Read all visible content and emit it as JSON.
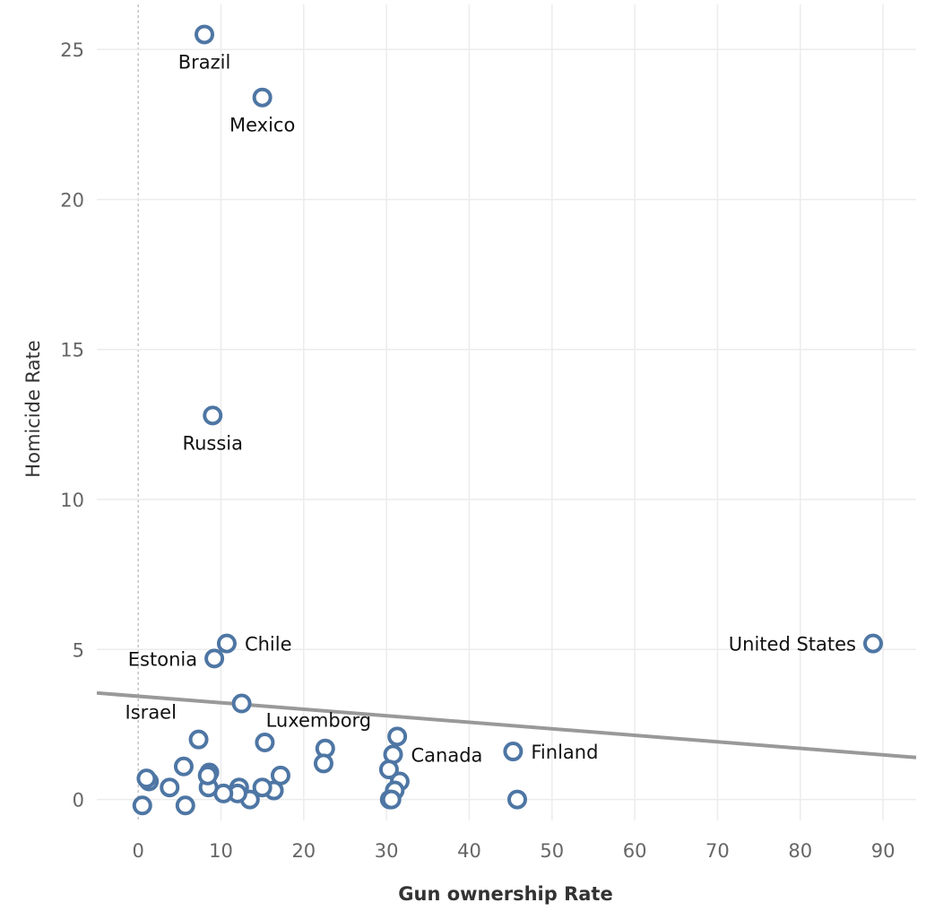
{
  "chart_data": {
    "type": "scatter",
    "xlabel": "Gun ownership Rate",
    "ylabel": "Homicide Rate",
    "xlim": [
      -5,
      94
    ],
    "ylim": [
      -0.7,
      26.5
    ],
    "x_ticks": [
      0,
      10,
      20,
      30,
      40,
      50,
      60,
      70,
      80,
      90
    ],
    "y_ticks": [
      0,
      5,
      10,
      15,
      20,
      25
    ],
    "grid": true,
    "colors": {
      "marker": "#4e76a4",
      "trend": "#999999"
    },
    "trend_line": {
      "x": [
        -5,
        94
      ],
      "y": [
        3.55,
        1.4
      ]
    },
    "points": [
      {
        "x": 8.0,
        "y": 25.5,
        "label": "Brazil",
        "label_pos": "below"
      },
      {
        "x": 15.0,
        "y": 23.4,
        "label": "Mexico",
        "label_pos": "below"
      },
      {
        "x": 9.0,
        "y": 12.8,
        "label": "Russia",
        "label_pos": "below"
      },
      {
        "x": 10.7,
        "y": 5.2,
        "label": "Chile",
        "label_pos": "right"
      },
      {
        "x": 9.2,
        "y": 4.7,
        "label": "Estonia",
        "label_pos": "left"
      },
      {
        "x": 88.8,
        "y": 5.2,
        "label": "United States",
        "label_pos": "left"
      },
      {
        "x": 12.5,
        "y": 3.2,
        "label": "Luxemborg",
        "label_pos": "below-right"
      },
      {
        "x": 7.3,
        "y": 2.0,
        "label": "Israel",
        "label_pos": "above-left"
      },
      {
        "x": 30.8,
        "y": 1.5,
        "label": "Canada",
        "label_pos": "right"
      },
      {
        "x": 45.3,
        "y": 1.6,
        "label": "Finland",
        "label_pos": "right"
      },
      {
        "x": 15.3,
        "y": 1.9,
        "label": ""
      },
      {
        "x": 22.6,
        "y": 1.7,
        "label": ""
      },
      {
        "x": 22.4,
        "y": 1.2,
        "label": ""
      },
      {
        "x": 31.3,
        "y": 2.1,
        "label": ""
      },
      {
        "x": 30.3,
        "y": 1.0,
        "label": ""
      },
      {
        "x": 31.6,
        "y": 0.6,
        "label": ""
      },
      {
        "x": 31.0,
        "y": 0.3,
        "label": ""
      },
      {
        "x": 30.4,
        "y": 0.0,
        "label": ""
      },
      {
        "x": 30.6,
        "y": 0.0,
        "label": ""
      },
      {
        "x": 45.8,
        "y": 0.0,
        "label": ""
      },
      {
        "x": 17.2,
        "y": 0.8,
        "label": ""
      },
      {
        "x": 16.4,
        "y": 0.3,
        "label": ""
      },
      {
        "x": 15.0,
        "y": 0.4,
        "label": ""
      },
      {
        "x": 13.5,
        "y": 0.0,
        "label": ""
      },
      {
        "x": 12.2,
        "y": 0.4,
        "label": ""
      },
      {
        "x": 12.0,
        "y": 0.2,
        "label": ""
      },
      {
        "x": 10.3,
        "y": 0.2,
        "label": ""
      },
      {
        "x": 8.6,
        "y": 0.9,
        "label": ""
      },
      {
        "x": 8.5,
        "y": 0.4,
        "label": ""
      },
      {
        "x": 8.4,
        "y": 0.8,
        "label": ""
      },
      {
        "x": 5.5,
        "y": 1.1,
        "label": ""
      },
      {
        "x": 5.7,
        "y": -0.2,
        "label": ""
      },
      {
        "x": 3.8,
        "y": 0.4,
        "label": ""
      },
      {
        "x": 1.3,
        "y": 0.6,
        "label": ""
      },
      {
        "x": 1.0,
        "y": 0.7,
        "label": ""
      },
      {
        "x": 0.5,
        "y": -0.2,
        "label": ""
      }
    ]
  }
}
